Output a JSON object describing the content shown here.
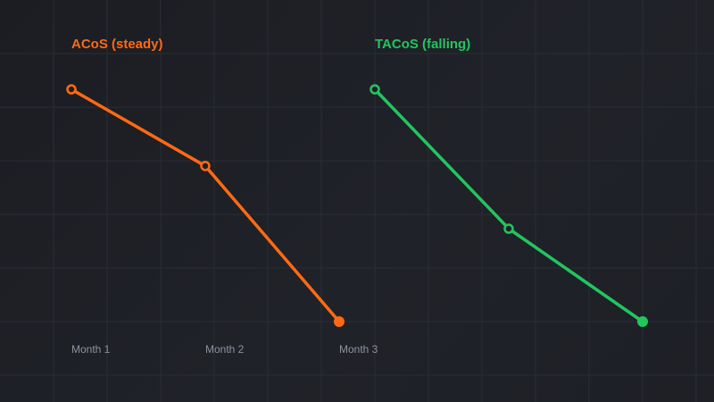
{
  "colors": {
    "acos": "#ff6a13",
    "tacos": "#22c55e",
    "grid": "#2a2d35",
    "tick_text": "#8e929c"
  },
  "chart_data": [
    {
      "type": "line",
      "title": "ACoS (steady)",
      "categories": [
        "Month 1",
        "Month 2",
        "Month 3"
      ],
      "series": [
        {
          "values": [
            100,
            67,
            0
          ]
        }
      ],
      "ylim": [
        0,
        100
      ],
      "grid": true,
      "marker_style": [
        "hollow",
        "hollow",
        "filled"
      ]
    },
    {
      "type": "line",
      "title": "TACoS (falling)",
      "categories": [
        "",
        "",
        ""
      ],
      "series": [
        {
          "values": [
            100,
            40,
            0
          ]
        }
      ],
      "ylim": [
        0,
        100
      ],
      "grid": true,
      "marker_style": [
        "hollow",
        "hollow",
        "filled"
      ]
    }
  ]
}
